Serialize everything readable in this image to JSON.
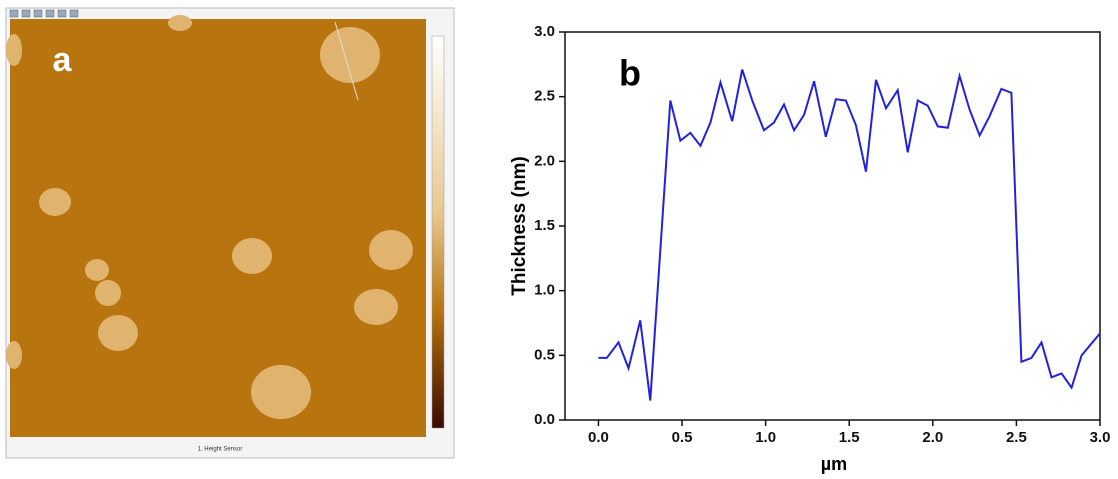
{
  "image_panel": {
    "label": "a",
    "caption": "1. Height Sensor"
  },
  "chart_data": {
    "type": "line",
    "panel_label": "b",
    "y_label": "Thickness (nm)",
    "x_label": "µm",
    "color": "#2222dd",
    "x": [
      0,
      0.05,
      0.12,
      0.18,
      0.25,
      0.31,
      0.43,
      0.49,
      0.55,
      0.61,
      0.67,
      0.73,
      0.8,
      0.86,
      0.92,
      0.99,
      1.05,
      1.11,
      1.17,
      1.23,
      1.29,
      1.36,
      1.42,
      1.48,
      1.54,
      1.6,
      1.66,
      1.72,
      1.79,
      1.85,
      1.91,
      1.97,
      2.03,
      2.09,
      2.16,
      2.22,
      2.28,
      2.34,
      2.41,
      2.47,
      2.53,
      2.59,
      2.65,
      2.71,
      2.77,
      2.83,
      2.89,
      3.0
    ],
    "values": [
      0.48,
      0.48,
      0.6,
      0.4,
      0.77,
      0.15,
      2.47,
      2.16,
      2.22,
      2.12,
      2.3,
      2.61,
      2.31,
      2.71,
      2.47,
      2.24,
      2.3,
      2.44,
      2.24,
      2.36,
      2.62,
      2.19,
      2.48,
      2.47,
      2.28,
      1.92,
      2.63,
      2.41,
      2.55,
      2.07,
      2.47,
      2.43,
      2.27,
      2.26,
      2.66,
      2.4,
      2.2,
      2.35,
      2.56,
      2.53,
      0.45,
      0.48,
      0.6,
      0.33,
      0.36,
      0.25,
      0.5,
      0.67
    ],
    "xlim": [
      -0.2,
      3.0
    ],
    "xticks": [
      {
        "value": 0,
        "label": "0.0"
      },
      {
        "value": 0.5,
        "label": "0.5"
      },
      {
        "value": 1,
        "label": "1.0"
      },
      {
        "value": 1.5,
        "label": "1.5"
      },
      {
        "value": 2,
        "label": "2.0"
      },
      {
        "value": 2.5,
        "label": "2.5"
      },
      {
        "value": 3,
        "label": "3.0"
      }
    ],
    "ylim": [
      0,
      3.0
    ],
    "yticks": [
      {
        "value": 0,
        "label": "0.0"
      },
      {
        "value": 0.5,
        "label": "0.5"
      },
      {
        "value": 1,
        "label": "1.0"
      },
      {
        "value": 1.5,
        "label": "1.5"
      },
      {
        "value": 2,
        "label": "2.0"
      },
      {
        "value": 2.5,
        "label": "2.5"
      },
      {
        "value": 3,
        "label": "3.0"
      }
    ]
  }
}
